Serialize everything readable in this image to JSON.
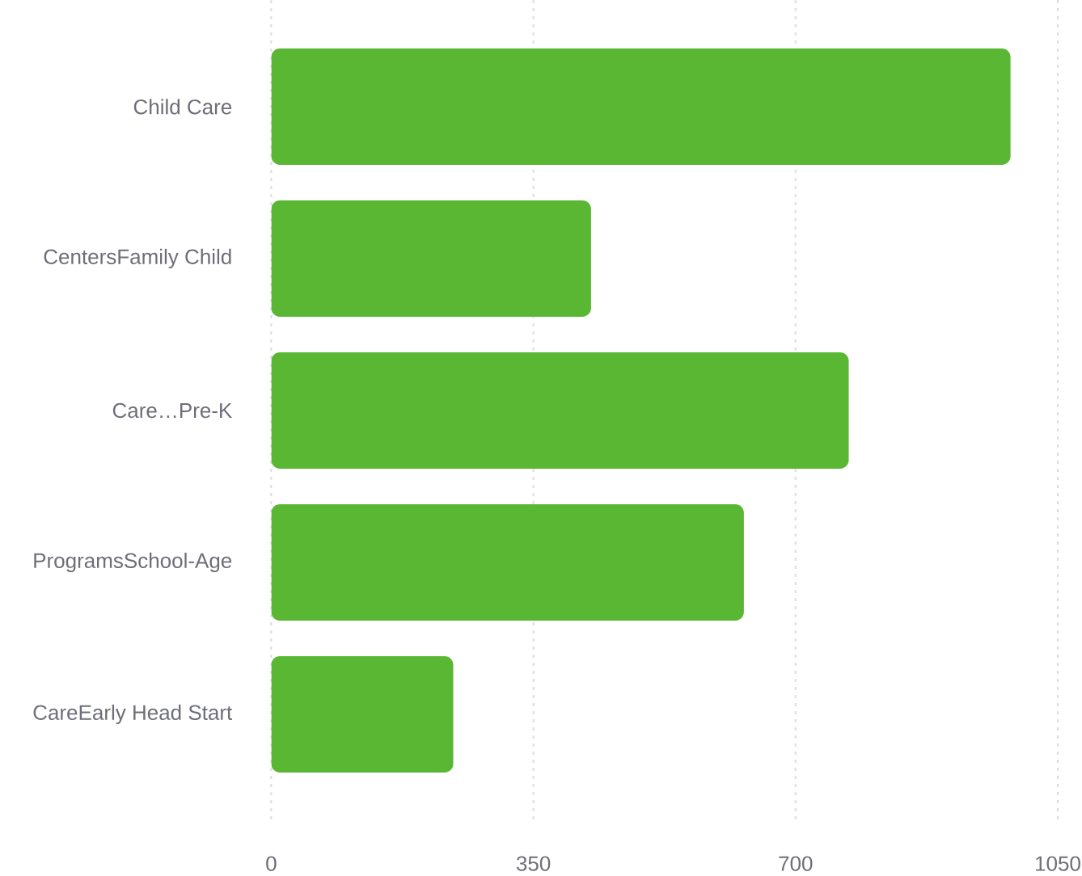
{
  "chart_data": {
    "type": "bar",
    "orientation": "horizontal",
    "categories": [
      "Child Care",
      "CentersFamily Child",
      "Care…Pre-K",
      "ProgramsSchool-Age",
      "CareEarly Head Start"
    ],
    "values": [
      987,
      427,
      771,
      631,
      243
    ],
    "color": "#5ab734",
    "xlim": [
      0,
      1050
    ],
    "xticks": [
      0,
      350,
      700,
      1050
    ],
    "grid": "x"
  }
}
